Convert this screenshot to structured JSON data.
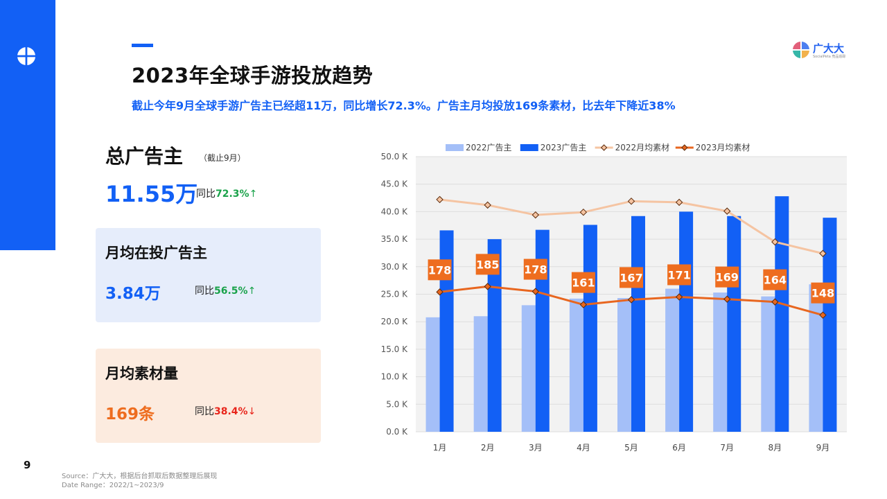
{
  "header": {
    "title": "2023年全球手游投放趋势",
    "subtitle": "截止今年9月全球手游广告主已经超11万，同比增长72.3%。广告主月均投放169条素材，比去年下降近38%"
  },
  "brand": {
    "name": "广大大",
    "sub": "SocialPeta 竞品追踪"
  },
  "kpis": {
    "total": {
      "title": "总广告主",
      "note": "（截止9月）",
      "value": "11.55万",
      "yoy_label": "同比",
      "yoy_pct": "72.3%",
      "arrow": "↑"
    },
    "monthly_active": {
      "title": "月均在投广告主",
      "value": "3.84万",
      "yoy_label": "同比",
      "yoy_pct": "56.5%",
      "arrow": "↑"
    },
    "monthly_creatives": {
      "title": "月均素材量",
      "value": "169条",
      "yoy_label": "同比",
      "yoy_pct": "38.4%",
      "arrow": "↓"
    }
  },
  "page_number": "9",
  "source": {
    "line1": "Source：广大大，根据后台抓取后数据整理后展现",
    "line2": "Date Range：2022/1~2023/9"
  },
  "watermark": "广大大",
  "colors": {
    "primary": "#1260f5",
    "bar2022": "#a4bff8",
    "bar2023": "#1260f5",
    "line2022": "#f5c4a2",
    "line2023": "#e8661f",
    "labelBox": "#ee6d1f",
    "up": "#1aa24a",
    "down": "#e8251b",
    "cardBlue": "#e6edfb",
    "cardOrange": "#fcebdf"
  },
  "chart_data": {
    "type": "bar",
    "categories": [
      "1月",
      "2月",
      "3月",
      "4月",
      "5月",
      "6月",
      "7月",
      "8月",
      "9月"
    ],
    "y_ticks": [
      "0.0 K",
      "5.0 K",
      "10.0 K",
      "15.0 K",
      "20.0 K",
      "25.0 K",
      "30.0 K",
      "35.0 K",
      "40.0 K",
      "45.0 K",
      "50.0 K"
    ],
    "ylim": [
      0,
      50000
    ],
    "grid": true,
    "legend_position": "top",
    "series": [
      {
        "name": "2022广告主",
        "kind": "bar",
        "color": "#a4bff8",
        "values": [
          20800,
          21000,
          23000,
          24200,
          24300,
          26000,
          25300,
          24600,
          26800
        ]
      },
      {
        "name": "2023广告主",
        "kind": "bar",
        "color": "#1260f5",
        "values": [
          36600,
          35000,
          36700,
          37600,
          39200,
          40000,
          39200,
          42800,
          38900
        ]
      },
      {
        "name": "2022月均素材",
        "kind": "line",
        "color": "#f5c4a2",
        "values": [
          42200,
          41200,
          39400,
          39900,
          41900,
          41700,
          40100,
          34500,
          32400
        ]
      },
      {
        "name": "2023月均素材",
        "kind": "line",
        "color": "#e8661f",
        "values": [
          25400,
          26400,
          25500,
          23100,
          24000,
          24500,
          24100,
          23600,
          21200
        ],
        "labels": [
          "178",
          "185",
          "178",
          "161",
          "167",
          "171",
          "169",
          "164",
          "148"
        ]
      }
    ]
  }
}
